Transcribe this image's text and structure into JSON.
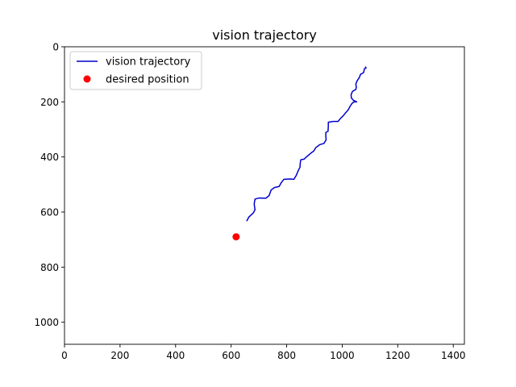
{
  "chart_data": {
    "type": "line",
    "title": "vision trajectory",
    "xlabel": "",
    "ylabel": "",
    "xlim": [
      0,
      1440
    ],
    "ylim": [
      1080,
      0
    ],
    "y_inverted": true,
    "x_ticks": [
      0,
      200,
      400,
      600,
      800,
      1000,
      1200,
      1400
    ],
    "y_ticks": [
      0,
      200,
      400,
      600,
      800,
      1000
    ],
    "grid": false,
    "legend_position": "upper-left",
    "series": [
      {
        "name": "vision trajectory",
        "type": "line",
        "color": "#0000cc",
        "points": [
          [
            656,
            633
          ],
          [
            664,
            618
          ],
          [
            680,
            603
          ],
          [
            686,
            592
          ],
          [
            683,
            571
          ],
          [
            686,
            553
          ],
          [
            701,
            549
          ],
          [
            725,
            550
          ],
          [
            737,
            540
          ],
          [
            744,
            520
          ],
          [
            756,
            511
          ],
          [
            773,
            507
          ],
          [
            780,
            494
          ],
          [
            790,
            481
          ],
          [
            812,
            480
          ],
          [
            826,
            481
          ],
          [
            834,
            468
          ],
          [
            842,
            449
          ],
          [
            848,
            437
          ],
          [
            849,
            422
          ],
          [
            851,
            410
          ],
          [
            863,
            408
          ],
          [
            871,
            400
          ],
          [
            885,
            388
          ],
          [
            898,
            378
          ],
          [
            905,
            366
          ],
          [
            920,
            355
          ],
          [
            934,
            351
          ],
          [
            942,
            338
          ],
          [
            941,
            323
          ],
          [
            941,
            311
          ],
          [
            949,
            307
          ],
          [
            950,
            288
          ],
          [
            950,
            274
          ],
          [
            967,
            271
          ],
          [
            985,
            271
          ],
          [
            994,
            260
          ],
          [
            1004,
            250
          ],
          [
            1012,
            240
          ],
          [
            1021,
            230
          ],
          [
            1028,
            217
          ],
          [
            1035,
            206
          ],
          [
            1042,
            200
          ],
          [
            1052,
            200
          ],
          [
            1040,
            194
          ],
          [
            1033,
            186
          ],
          [
            1032,
            174
          ],
          [
            1037,
            162
          ],
          [
            1049,
            155
          ],
          [
            1051,
            147
          ],
          [
            1049,
            136
          ],
          [
            1053,
            125
          ],
          [
            1062,
            111
          ],
          [
            1066,
            100
          ],
          [
            1077,
            94
          ],
          [
            1080,
            80
          ],
          [
            1086,
            77
          ],
          [
            1083,
            72
          ]
        ]
      },
      {
        "name": "desired position",
        "type": "scatter",
        "color": "#ff0000",
        "points": [
          [
            618,
            690
          ]
        ]
      }
    ]
  }
}
